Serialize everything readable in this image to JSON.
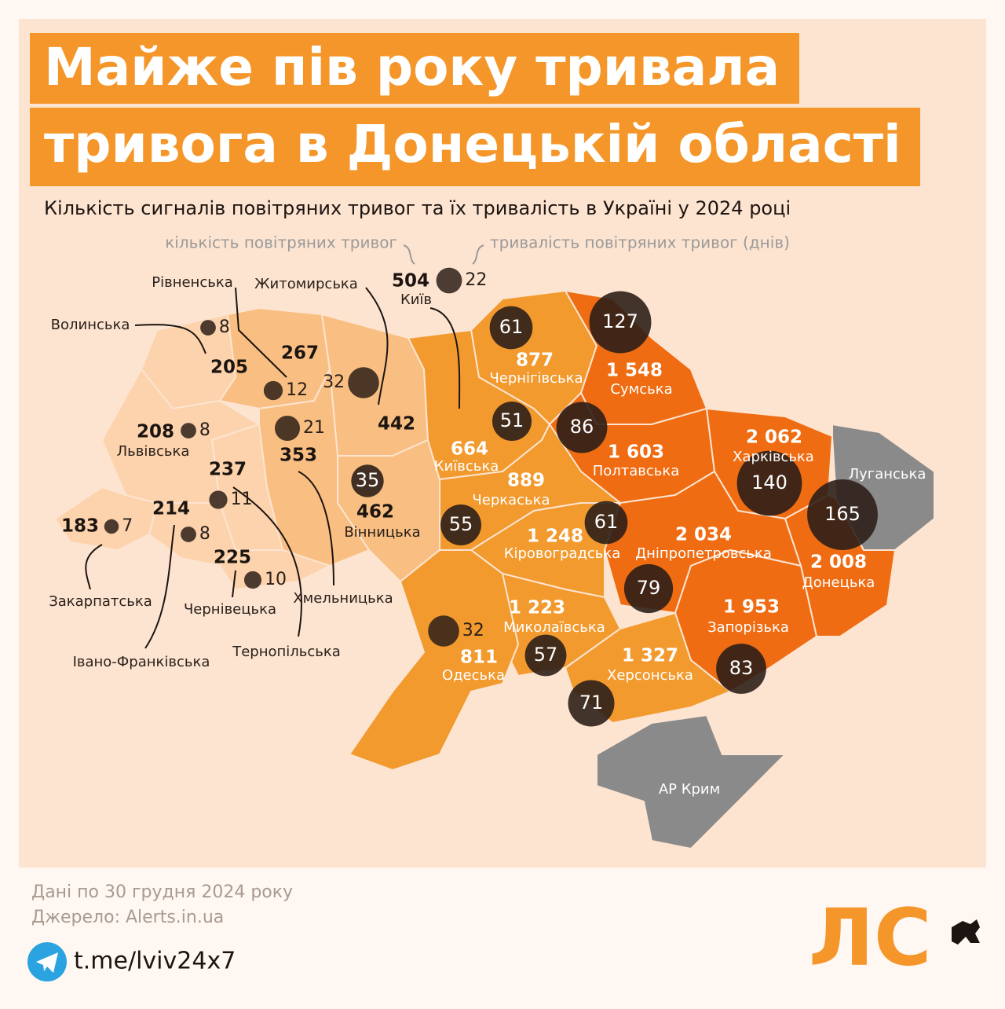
{
  "title_lines": [
    "Майже пів року тривала",
    "тривога в Донецькій області"
  ],
  "subtitle": "Кількість сигналів повітряних тривог та їх тривалість в Україні у 2024 році",
  "legend": {
    "count_label": "кількість повітряних тривог",
    "duration_label": "тривалість повітряних тривог (днів)"
  },
  "regions": [
    {
      "name": "Волинська",
      "alerts": 205,
      "days": 8,
      "color": "#fcd3ad"
    },
    {
      "name": "Рівненська",
      "alerts": 267,
      "days": 12,
      "color": "#f9bf82"
    },
    {
      "name": "Житомирська",
      "alerts": 442,
      "days": 32,
      "color": "#f9bf82"
    },
    {
      "name": "Київ",
      "alerts": 504,
      "days": 22,
      "color": "#f29a2e"
    },
    {
      "name": "Львівська",
      "alerts": 208,
      "days": 8,
      "color": "#fcd3ad"
    },
    {
      "name": "Тернопільська",
      "alerts": 237,
      "days": 11,
      "color": "#fcd3ad"
    },
    {
      "name": "Хмельницька",
      "alerts": 353,
      "days": 21,
      "color": "#f9bf82"
    },
    {
      "name": "Вінницька",
      "alerts": 462,
      "days": 35,
      "color": "#f9bf82"
    },
    {
      "name": "Івано-Франківська",
      "alerts": 214,
      "days": 8,
      "color": "#fcd3ad"
    },
    {
      "name": "Чернівецька",
      "alerts": 225,
      "days": 10,
      "color": "#fcd3ad"
    },
    {
      "name": "Закарпатська",
      "alerts": 183,
      "days": 7,
      "color": "#fcd3ad"
    },
    {
      "name": "Чернігівська",
      "alerts": 877,
      "days": 61,
      "color": "#f29a2e"
    },
    {
      "name": "Сумська",
      "alerts": 1548,
      "alerts_label": "1 548",
      "days": 127,
      "color": "#ef6c12"
    },
    {
      "name": "Київська",
      "alerts": 664,
      "days": 51,
      "color": "#f29a2e"
    },
    {
      "name": "Полтавська",
      "alerts": 1603,
      "alerts_label": "1 603",
      "days": 86,
      "color": "#ef6c12"
    },
    {
      "name": "Черкаська",
      "alerts": 889,
      "days": 55,
      "color": "#f29a2e"
    },
    {
      "name": "Кіровоградська",
      "alerts": 1248,
      "alerts_label": "1 248",
      "days": 61,
      "color": "#f29a2e"
    },
    {
      "name": "Харківська",
      "alerts": 2062,
      "alerts_label": "2 062",
      "days": 140,
      "color": "#ef6c12"
    },
    {
      "name": "Дніпропетровська",
      "alerts": 2034,
      "alerts_label": "2 034",
      "days": 79,
      "color": "#ef6c12"
    },
    {
      "name": "Донецька",
      "alerts": 2008,
      "alerts_label": "2 008",
      "days": 165,
      "color": "#ef6c12"
    },
    {
      "name": "Запорізька",
      "alerts": 1953,
      "alerts_label": "1 953",
      "days": 83,
      "color": "#ef6c12"
    },
    {
      "name": "Миколаївська",
      "alerts": 1223,
      "alerts_label": "1 223",
      "days": 57,
      "color": "#f29a2e"
    },
    {
      "name": "Херсонська",
      "alerts": 1327,
      "alerts_label": "1 327",
      "days": 71,
      "color": "#f29a2e"
    },
    {
      "name": "Одеська",
      "alerts": 811,
      "days": 32,
      "color": "#f29a2e"
    }
  ],
  "occupied_regions": [
    {
      "name": "Луганська",
      "color": "#8a8a8a"
    },
    {
      "name": "АР Крим",
      "color": "#8a8a8a"
    }
  ],
  "footer": {
    "date": "Дані по 30 грудня 2024 року",
    "source": "Джерело: Alerts.in.ua",
    "telegram": "t.me/lviv24x7",
    "logo": "ЛС"
  }
}
